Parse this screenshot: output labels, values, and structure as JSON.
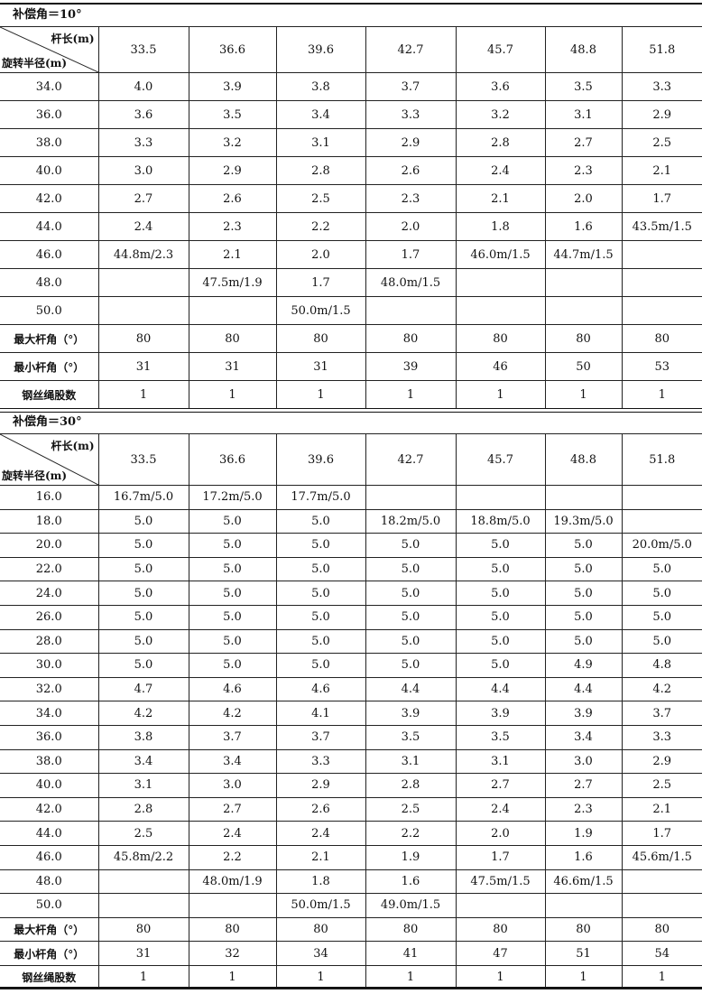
{
  "header_top_label": "杆长(m)",
  "header_bottom_label": "旋转半径(m)",
  "rod_lengths": [
    "33.5",
    "36.6",
    "39.6",
    "42.7",
    "45.7",
    "48.8",
    "51.8"
  ],
  "tables": [
    {
      "title": "补偿角＝10°",
      "rows": [
        {
          "label": "34.0",
          "cells": [
            "4.0",
            "3.9",
            "3.8",
            "3.7",
            "3.6",
            "3.5",
            "3.3"
          ]
        },
        {
          "label": "36.0",
          "cells": [
            "3.6",
            "3.5",
            "3.4",
            "3.3",
            "3.2",
            "3.1",
            "2.9"
          ]
        },
        {
          "label": "38.0",
          "cells": [
            "3.3",
            "3.2",
            "3.1",
            "2.9",
            "2.8",
            "2.7",
            "2.5"
          ]
        },
        {
          "label": "40.0",
          "cells": [
            "3.0",
            "2.9",
            "2.8",
            "2.6",
            "2.4",
            "2.3",
            "2.1"
          ]
        },
        {
          "label": "42.0",
          "cells": [
            "2.7",
            "2.6",
            "2.5",
            "2.3",
            "2.1",
            "2.0",
            "1.7"
          ]
        },
        {
          "label": "44.0",
          "cells": [
            "2.4",
            "2.3",
            "2.2",
            "2.0",
            "1.8",
            "1.6",
            "43.5m/1.5"
          ]
        },
        {
          "label": "46.0",
          "cells": [
            "44.8m/2.3",
            "2.1",
            "2.0",
            "1.7",
            "46.0m/1.5",
            "44.7m/1.5",
            ""
          ]
        },
        {
          "label": "48.0",
          "cells": [
            "",
            "47.5m/1.9",
            "1.7",
            "48.0m/1.5",
            "",
            "",
            ""
          ]
        },
        {
          "label": "50.0",
          "cells": [
            "",
            "",
            "50.0m/1.5",
            "",
            "",
            "",
            ""
          ]
        },
        {
          "label": "最大杆角（°）",
          "bold": true,
          "cells": [
            "80",
            "80",
            "80",
            "80",
            "80",
            "80",
            "80"
          ]
        },
        {
          "label": "最小杆角（°）",
          "bold": true,
          "cells": [
            "31",
            "31",
            "31",
            "39",
            "46",
            "50",
            "53"
          ]
        },
        {
          "label": "钢丝绳股数",
          "bold": true,
          "cells": [
            "1",
            "1",
            "1",
            "1",
            "1",
            "1",
            "1"
          ]
        }
      ]
    },
    {
      "title": "补偿角＝30°",
      "rows": [
        {
          "label": "16.0",
          "cells": [
            "16.7m/5.0",
            "17.2m/5.0",
            "17.7m/5.0",
            "",
            "",
            "",
            ""
          ]
        },
        {
          "label": "18.0",
          "cells": [
            "5.0",
            "5.0",
            "5.0",
            "18.2m/5.0",
            "18.8m/5.0",
            "19.3m/5.0",
            ""
          ]
        },
        {
          "label": "20.0",
          "cells": [
            "5.0",
            "5.0",
            "5.0",
            "5.0",
            "5.0",
            "5.0",
            "20.0m/5.0"
          ]
        },
        {
          "label": "22.0",
          "cells": [
            "5.0",
            "5.0",
            "5.0",
            "5.0",
            "5.0",
            "5.0",
            "5.0"
          ]
        },
        {
          "label": "24.0",
          "cells": [
            "5.0",
            "5.0",
            "5.0",
            "5.0",
            "5.0",
            "5.0",
            "5.0"
          ]
        },
        {
          "label": "26.0",
          "cells": [
            "5.0",
            "5.0",
            "5.0",
            "5.0",
            "5.0",
            "5.0",
            "5.0"
          ]
        },
        {
          "label": "28.0",
          "cells": [
            "5.0",
            "5.0",
            "5.0",
            "5.0",
            "5.0",
            "5.0",
            "5.0"
          ]
        },
        {
          "label": "30.0",
          "cells": [
            "5.0",
            "5.0",
            "5.0",
            "5.0",
            "5.0",
            "4.9",
            "4.8"
          ]
        },
        {
          "label": "32.0",
          "cells": [
            "4.7",
            "4.6",
            "4.6",
            "4.4",
            "4.4",
            "4.4",
            "4.2"
          ]
        },
        {
          "label": "34.0",
          "cells": [
            "4.2",
            "4.2",
            "4.1",
            "3.9",
            "3.9",
            "3.9",
            "3.7"
          ]
        },
        {
          "label": "36.0",
          "cells": [
            "3.8",
            "3.7",
            "3.7",
            "3.5",
            "3.5",
            "3.4",
            "3.3"
          ]
        },
        {
          "label": "38.0",
          "cells": [
            "3.4",
            "3.4",
            "3.3",
            "3.1",
            "3.1",
            "3.0",
            "2.9"
          ]
        },
        {
          "label": "40.0",
          "cells": [
            "3.1",
            "3.0",
            "2.9",
            "2.8",
            "2.7",
            "2.7",
            "2.5"
          ]
        },
        {
          "label": "42.0",
          "cells": [
            "2.8",
            "2.7",
            "2.6",
            "2.5",
            "2.4",
            "2.3",
            "2.1"
          ]
        },
        {
          "label": "44.0",
          "cells": [
            "2.5",
            "2.4",
            "2.4",
            "2.2",
            "2.0",
            "1.9",
            "1.7"
          ]
        },
        {
          "label": "46.0",
          "cells": [
            "45.8m/2.2",
            "2.2",
            "2.1",
            "1.9",
            "1.7",
            "1.6",
            "45.6m/1.5"
          ]
        },
        {
          "label": "48.0",
          "cells": [
            "",
            "48.0m/1.9",
            "1.8",
            "1.6",
            "47.5m/1.5",
            "46.6m/1.5",
            ""
          ]
        },
        {
          "label": "50.0",
          "cells": [
            "",
            "",
            "50.0m/1.5",
            "49.0m/1.5",
            "",
            "",
            ""
          ]
        },
        {
          "label": "最大杆角（°）",
          "bold": true,
          "cells": [
            "80",
            "80",
            "80",
            "80",
            "80",
            "80",
            "80"
          ]
        },
        {
          "label": "最小杆角（°）",
          "bold": true,
          "cells": [
            "31",
            "32",
            "34",
            "41",
            "47",
            "51",
            "54"
          ]
        },
        {
          "label": "钢丝绳股数",
          "bold": true,
          "cells": [
            "1",
            "1",
            "1",
            "1",
            "1",
            "1",
            "1"
          ]
        }
      ]
    }
  ]
}
